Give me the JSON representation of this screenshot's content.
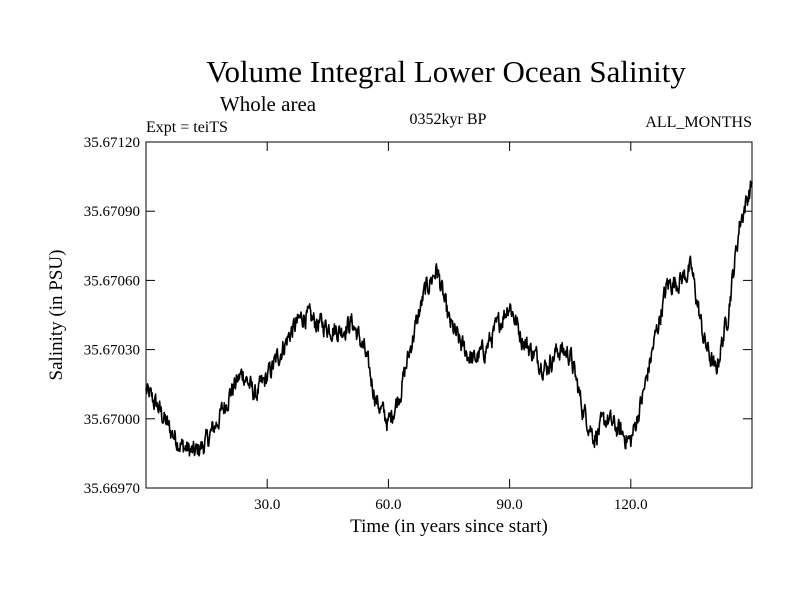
{
  "chart_data": {
    "type": "line",
    "title": "Volume Integral Lower Ocean Salinity",
    "subtitle": "Whole area",
    "left_label": "Expt = teiTS",
    "center_label": "0352kyr BP",
    "right_label": "ALL_MONTHS",
    "xlabel": "Time (in years since start)",
    "ylabel": "Salinity (in PSU)",
    "xlim": [
      0,
      150
    ],
    "ylim": [
      35.6697,
      35.6712
    ],
    "x_ticks": [
      30.0,
      60.0,
      90.0,
      120.0
    ],
    "x_tick_labels": [
      "30.0",
      "60.0",
      "90.0",
      "120.0"
    ],
    "y_ticks": [
      35.6697,
      35.67,
      35.6703,
      35.6706,
      35.6709,
      35.6712
    ],
    "y_tick_labels": [
      "35.66970",
      "35.67000",
      "35.67030",
      "35.67060",
      "35.67090",
      "35.67120"
    ],
    "grid": false,
    "series": [
      {
        "name": "salinity",
        "x": [
          0,
          3,
          6,
          9,
          12,
          15,
          18,
          21,
          24,
          27,
          30,
          33,
          36,
          39,
          42,
          45,
          48,
          51,
          54,
          57,
          60,
          63,
          66,
          69,
          72,
          75,
          78,
          81,
          84,
          87,
          90,
          93,
          96,
          99,
          102,
          105,
          108,
          111,
          114,
          117,
          120,
          123,
          126,
          129,
          132,
          135,
          138,
          141,
          144,
          147,
          150
        ],
        "values": [
          35.67012,
          35.67005,
          35.66995,
          35.66988,
          35.66985,
          35.6699,
          35.67,
          35.67012,
          35.6702,
          35.6701,
          35.67018,
          35.67028,
          35.67038,
          35.67045,
          35.67042,
          35.6704,
          35.67038,
          35.67042,
          35.6703,
          35.67008,
          35.66998,
          35.67012,
          35.67035,
          35.67055,
          35.67065,
          35.67042,
          35.67032,
          35.67025,
          35.6703,
          35.6704,
          35.6705,
          35.67035,
          35.67028,
          35.67022,
          35.6703,
          35.67028,
          35.67005,
          35.66992,
          35.67,
          35.66995,
          35.6699,
          35.6701,
          35.67035,
          35.67058,
          35.6706,
          35.67065,
          35.67035,
          35.6702,
          35.67045,
          35.67085,
          35.67102
        ]
      }
    ]
  }
}
